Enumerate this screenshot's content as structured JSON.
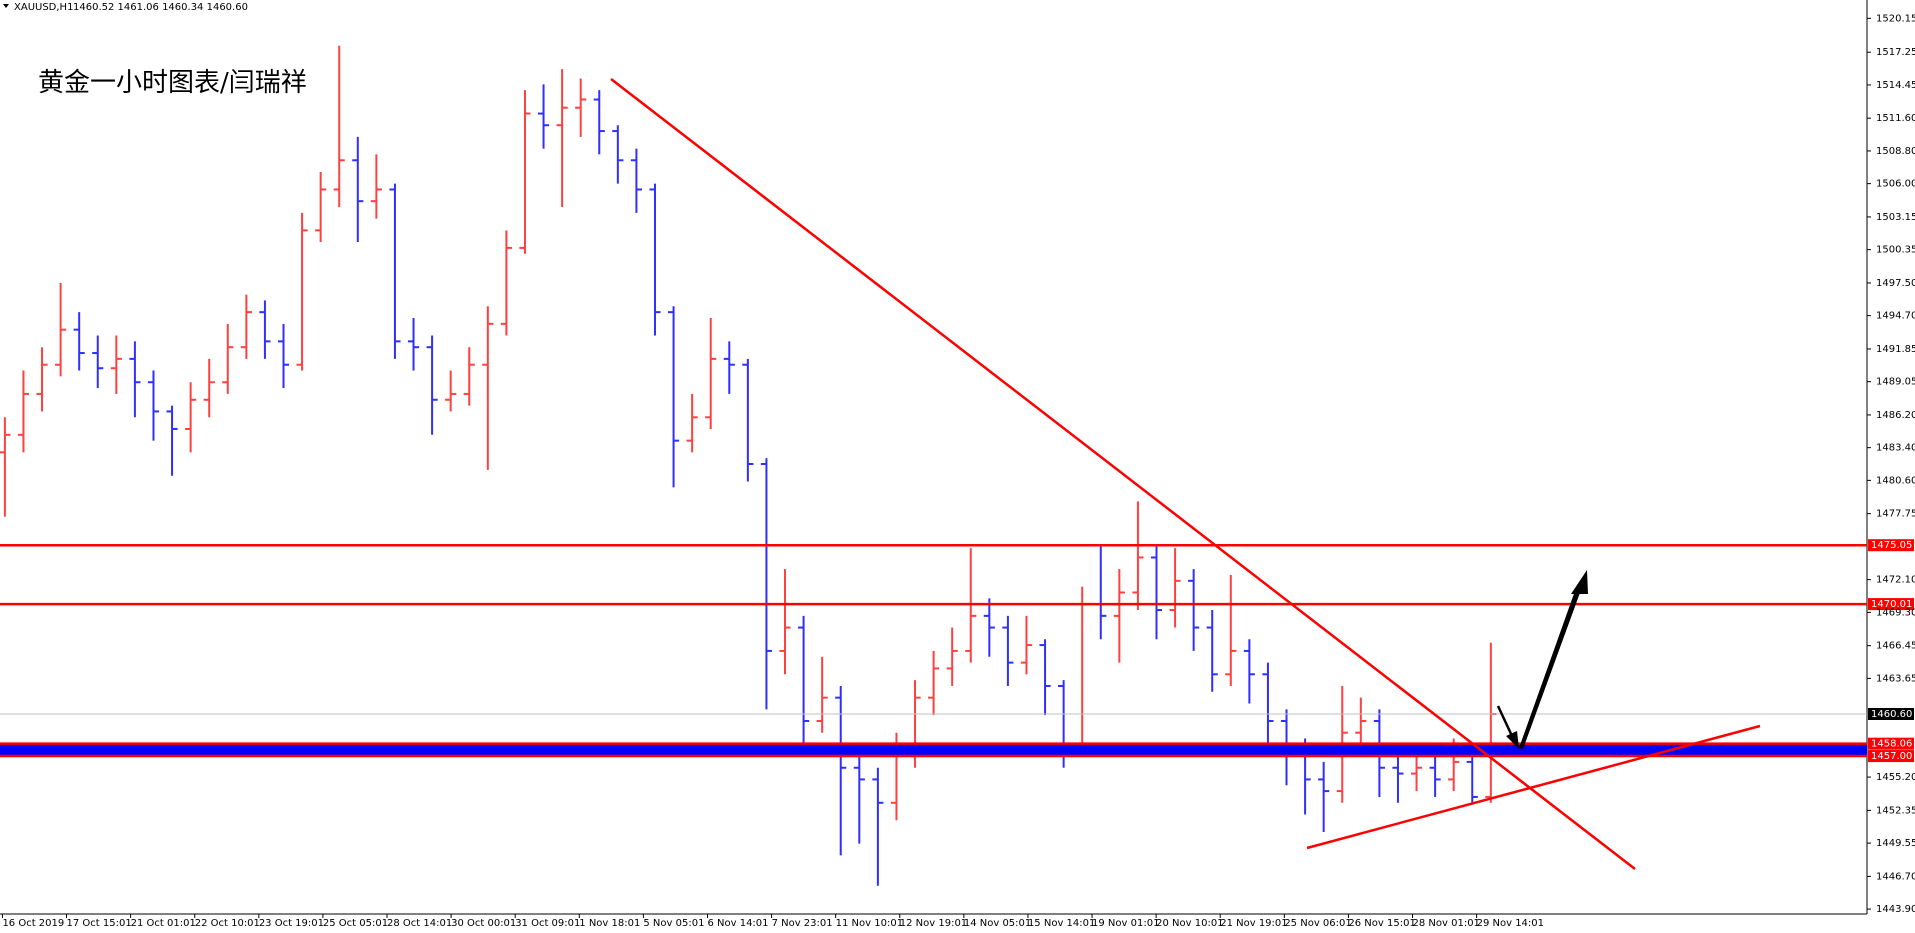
{
  "header": {
    "symbol": "XAUUSD,H1",
    "ohlc": "1460.52 1461.06 1460.34 1460.60"
  },
  "annotation": "黄金一小时图表/闫瑞祥",
  "chart_data": {
    "type": "candlestick",
    "up_color": "#ff4040",
    "down_color": "#2f2fff",
    "ylim": [
      1443.48,
      1521.72
    ],
    "yticks": [
      1520.15,
      1517.25,
      1514.45,
      {
        "value": 1511.6,
        "label": "1511.60"
      },
      {
        "value": 1508.8,
        "label": "1508.80"
      },
      {
        "value": 1506,
        "label": "1506.00"
      },
      1503.15,
      1500.35,
      {
        "value": 1497.5,
        "label": "1497.50"
      },
      {
        "value": 1494.7,
        "label": "1494.70"
      },
      1491.85,
      1489.05,
      {
        "value": 1486.2,
        "label": "1486.20"
      },
      {
        "value": 1483.4,
        "label": "1483.40"
      },
      {
        "value": 1480.6,
        "label": "1480.60"
      },
      1477.75,
      {
        "value": 1472.1,
        "label": "1472.10"
      },
      {
        "value": 1469.3,
        "label": "1469.30"
      },
      1466.45,
      1463.65,
      {
        "value": 1455.2,
        "label": "1455.20"
      },
      1452.35,
      1449.55,
      {
        "value": 1446.7,
        "label": "1446.70"
      },
      {
        "value": 1443.9,
        "label": "1443.90"
      }
    ],
    "x_labels": [
      "16 Oct 2019",
      "17 Oct 15:01",
      "21 Oct 01:01",
      "22 Oct 10:01",
      "23 Oct 19:01",
      "25 Oct 05:01",
      "28 Oct 14:01",
      "30 Oct 00:01",
      "31 Oct 09:01",
      "1 Nov 18:01",
      "5 Nov 05:01",
      "6 Nov 14:01",
      "7 Nov 23:01",
      "11 Nov 10:01",
      "12 Nov 19:01",
      "14 Nov 05:01",
      "15 Nov 14:01",
      "19 Nov 01:01",
      "20 Nov 10:01",
      "21 Nov 19:01",
      "25 Nov 06:01",
      "26 Nov 15:01",
      "28 Nov 01:01",
      "29 Nov 14:01"
    ],
    "levels": [
      {
        "value": 1475.05,
        "label": "1475.05",
        "color": "#ff0000"
      },
      {
        "value": 1470.01,
        "label": "1470.01",
        "color": "#ff0000"
      },
      {
        "value": 1460.6,
        "label": "1460.60",
        "color": "#000000"
      },
      {
        "value": 1458.06,
        "label": "1458.06",
        "color": "#ff0000"
      },
      {
        "value": 1457,
        "label": "1457.00",
        "color": "#ff0000"
      }
    ],
    "band": {
      "from": 1457,
      "to": 1458.06,
      "color": "#0000ff"
    },
    "open": [
      1483,
      1484.5,
      1488,
      1490.5,
      1493.5,
      1491.5,
      1490.2,
      1491,
      1489,
      1486.5,
      1485,
      1487.5,
      1489,
      1492,
      1495,
      1492.5,
      1490.5,
      1502,
      1505.5,
      1508,
      1504.5,
      1505.5,
      1492.5,
      1492,
      1487.5,
      1488,
      1490.5,
      1494,
      1500.5,
      1512,
      1511,
      1512.5,
      1513.2,
      1510.5,
      1508,
      1505.5,
      1495,
      1484,
      1486,
      1491,
      1490.5,
      1482,
      1466,
      1468,
      1460,
      1462,
      1456,
      1455,
      1453,
      1457,
      1462,
      1464.5,
      1466,
      1469,
      1468,
      1465,
      1466.5,
      1463,
      1458,
      1470,
      1469,
      1471,
      1474,
      1469.5,
      1472,
      1468,
      1464,
      1466,
      1464,
      1460,
      1457,
      1455,
      1454,
      1459,
      1460,
      1456,
      1455.5,
      1456,
      1455,
      1456.5,
      1453.5
    ],
    "high": [
      1486,
      1490,
      1492,
      1497.5,
      1495,
      1493,
      1493,
      1492.5,
      1490,
      1487,
      1489,
      1491,
      1494,
      1496.5,
      1496,
      1494,
      1503.5,
      1507,
      1517.8,
      1510,
      1508.5,
      1506,
      1494.5,
      1493,
      1490,
      1492,
      1495.5,
      1502,
      1514,
      1514.5,
      1515.8,
      1515,
      1514,
      1511,
      1509,
      1506,
      1495.5,
      1488,
      1494.5,
      1492.5,
      1491,
      1482.5,
      1473,
      1469,
      1465.5,
      1463,
      1457.5,
      1456,
      1459,
      1463.5,
      1466,
      1468,
      1474.8,
      1470.5,
      1469,
      1469,
      1467,
      1463.5,
      1471.5,
      1475,
      1473,
      1478.8,
      1475,
      1474.8,
      1473,
      1469.5,
      1472.5,
      1467,
      1465,
      1461,
      1458.5,
      1456.5,
      1463,
      1462,
      1461,
      1457.5,
      1457.5,
      1457,
      1458.5,
      1457.5,
      1466.7
    ],
    "low": [
      1477.5,
      1483,
      1486.5,
      1489.5,
      1490,
      1488.5,
      1488,
      1486,
      1484,
      1481,
      1483,
      1486,
      1488,
      1491,
      1491,
      1488.5,
      1490,
      1501,
      1504,
      1501,
      1503,
      1491,
      1490,
      1484.5,
      1486.5,
      1487,
      1481.5,
      1493,
      1500,
      1509,
      1504,
      1510,
      1508.5,
      1506,
      1503.5,
      1493,
      1480,
      1483,
      1485,
      1488,
      1480.5,
      1461,
      1464,
      1457.5,
      1459,
      1448.5,
      1449.5,
      1445.9,
      1451.5,
      1456,
      1460.5,
      1463,
      1465,
      1465.5,
      1463,
      1464,
      1460.5,
      1456,
      1457.5,
      1467,
      1465,
      1469.5,
      1467,
      1468,
      1466,
      1462.5,
      1463,
      1461.5,
      1458,
      1454.5,
      1452,
      1450.5,
      1453,
      1457.5,
      1453.5,
      1453,
      1454,
      1453.5,
      1454,
      1453,
      1453
    ],
    "close": [
      1484.5,
      1488,
      1490.5,
      1493.5,
      1491.5,
      1490.2,
      1491,
      1489,
      1486.5,
      1485,
      1487.5,
      1489,
      1492,
      1495,
      1492.5,
      1490.5,
      1502,
      1505.5,
      1508,
      1504.5,
      1505.5,
      1492.5,
      1492,
      1487.5,
      1488,
      1490.5,
      1494,
      1500.5,
      1512,
      1511,
      1512.5,
      1513.2,
      1510.5,
      1508,
      1505.5,
      1495,
      1484,
      1486,
      1491,
      1490.5,
      1482,
      1466,
      1468,
      1460,
      1462,
      1456,
      1455,
      1453,
      1457,
      1462,
      1464.5,
      1466,
      1469,
      1468,
      1465,
      1466.5,
      1463,
      1458,
      1470,
      1469,
      1471,
      1474,
      1469.5,
      1472,
      1468,
      1464,
      1466,
      1464,
      1460,
      1457,
      1455,
      1454,
      1459,
      1460,
      1456,
      1455.5,
      1456,
      1455,
      1456.5,
      1453.5,
      1460.6
    ]
  }
}
